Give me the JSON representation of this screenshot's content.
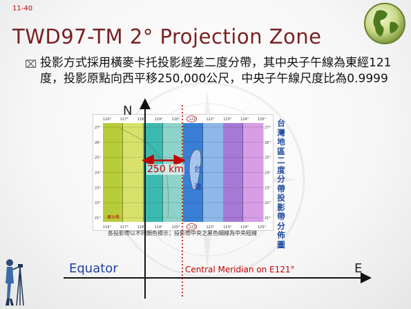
{
  "slide": {
    "number": "11-40",
    "title": "TWD97-TM 2° Projection Zone",
    "body": "投影方式採用橫麥卡托投影經差二度分帶，其中央子午線為東經121度，投影原點向西平移250,000公尺，中央子午線尺度比為0.9999"
  },
  "diagram": {
    "north_label": "N",
    "east_label": "E",
    "equator_label": "Equator",
    "central_meridian_label": "Central Meridian on E121°",
    "offset_label": "250 km",
    "map_title": "台灣地區二度分帶投影帶分佈圖",
    "map_caption": "各投影帶以不同顏色標示；投影帶中央之黑色細線為中央經線",
    "map_corner_label": "東沙島",
    "map_inner_labels": [
      "台",
      "灣"
    ],
    "lon_ticks": [
      "116°",
      "117°",
      "118°",
      "119°",
      "120°",
      "121°",
      "122°",
      "123°",
      "124°",
      "125°"
    ],
    "lat_ticks": [
      "27°",
      "26°",
      "25°",
      "24°",
      "23°",
      "22°",
      "21°"
    ],
    "zone_colors": [
      "#b8cc3a",
      "#d8e26a",
      "#3dbab0",
      "#8ed3c8",
      "#3a7fd6",
      "#8fb8ea",
      "#a779d6",
      "#d79ee6"
    ]
  }
}
